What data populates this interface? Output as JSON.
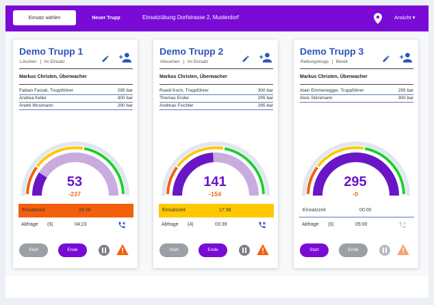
{
  "topbar": {
    "select_label": "Einsatz wählen",
    "new_label": "Neuer Trupp",
    "title": "Einsatzübung Dorfstrasse 2, Musterdorf",
    "view_label": "Ansicht ▾"
  },
  "colors": {
    "accent": "#7a0bd6",
    "title": "#2b55b9",
    "orange": "#f45f0b",
    "yellow": "#ffc800",
    "green": "#1ccf2c",
    "grey": "#9aa0a6"
  },
  "cards": [
    {
      "title": "Demo Trupp 1",
      "type": "Löschen",
      "status": "Im Einsatz",
      "watcher": "Markus Christen, Überwacher",
      "members": [
        {
          "name": "Fabian Faciati, Truppführer",
          "pressure": "295 bar"
        },
        {
          "name": "Andrea Keller",
          "pressure": "300 bar"
        },
        {
          "name": "André Mosimann",
          "pressure": "290 bar"
        }
      ],
      "gauge_value": "53",
      "gauge_delta": "-237",
      "gauge_level": 0.18,
      "time_label": "Einsatzzeit",
      "time_value": "24:28",
      "time_color": "#f45f0b",
      "abfrage_label": "Abfrage",
      "abfrage_count": "(6)",
      "abfrage_time": "04:23",
      "phone_active": true,
      "start_label": "Start",
      "end_label": "Ende",
      "start_active": false,
      "end_active": true
    },
    {
      "title": "Demo Trupp 2",
      "type": "Absuchen",
      "status": "Im Einsatz",
      "watcher": "Markus Christen, Überwacher",
      "members": [
        {
          "name": "Ruedi Koch, Truppführer",
          "pressure": "300 bar"
        },
        {
          "name": "Thomas Ender",
          "pressure": "295 bar"
        },
        {
          "name": "Andreas Fischler",
          "pressure": "295 bar"
        }
      ],
      "gauge_value": "141",
      "gauge_delta": "-154",
      "gauge_level": 0.48,
      "time_label": "Einsatzzeit",
      "time_value": "17:38",
      "time_color": "#ffc800",
      "abfrage_label": "Abfrage",
      "abfrage_count": "(4)",
      "abfrage_time": "03:39",
      "phone_active": true,
      "start_label": "Start",
      "end_label": "Ende",
      "start_active": false,
      "end_active": true
    },
    {
      "title": "Demo Trupp 3",
      "type": "Rettungstrupp",
      "status": "Bereit",
      "watcher": "Markus Christen, Überwacher",
      "members": [
        {
          "name": "Alain Emmenegger, Truppführer",
          "pressure": "295 bar"
        },
        {
          "name": "Alois Stirnimann",
          "pressure": "300 bar"
        }
      ],
      "gauge_value": "295",
      "gauge_delta": "-0",
      "gauge_level": 1.0,
      "time_label": "Einsatzzeit",
      "time_value": "00:00",
      "time_color": "#ffffff",
      "abfrage_label": "Abfrage",
      "abfrage_count": "(0)",
      "abfrage_time": "05:00",
      "phone_active": false,
      "start_label": "Start",
      "end_label": "Ende",
      "start_active": true,
      "end_active": false
    }
  ]
}
